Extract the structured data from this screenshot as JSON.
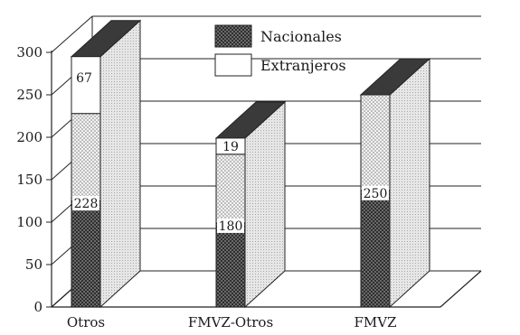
{
  "chart_data": {
    "type": "bar",
    "stacked": true,
    "three_d": true,
    "categories": [
      "Otros",
      "FMVZ-Otros",
      "FMVZ"
    ],
    "series": [
      {
        "name": "Nacionales",
        "values": [
          228,
          180,
          250
        ],
        "pattern": "checker-dark"
      },
      {
        "name": "Extranjeros",
        "values": [
          67,
          19,
          0
        ],
        "pattern": "white"
      }
    ],
    "data_labels": {
      "Nacionales": [
        "228",
        "180",
        "250"
      ],
      "Extranjeros": [
        "67",
        "19",
        ""
      ]
    },
    "ylim": [
      0,
      300
    ],
    "yticks": [
      "0",
      "50",
      "100",
      "150",
      "200",
      "250",
      "300"
    ],
    "grid": true,
    "legend_position": "top-center",
    "colors": {
      "dark_face": "#555555",
      "light_face": "#d8d8d8",
      "white_face": "#ffffff",
      "top_dark": "#3a3a3a",
      "grid": "#222222"
    }
  }
}
